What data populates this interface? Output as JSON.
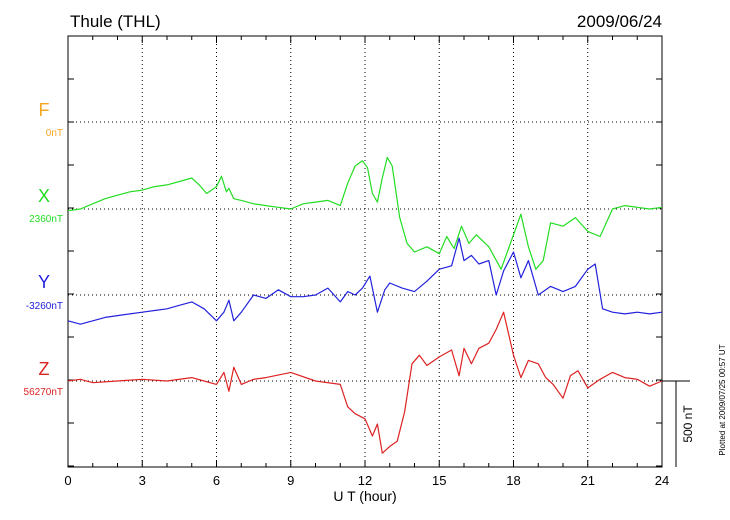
{
  "chart_data": {
    "type": "line",
    "title": "Thule (THL)",
    "date": "2009/06/24",
    "xlabel": "U T (hour)",
    "xlim": [
      0,
      24
    ],
    "x_ticks": [
      "0",
      "3",
      "6",
      "9",
      "12",
      "15",
      "18",
      "21",
      "24"
    ],
    "scale_bar_label": "500 nT",
    "plotted_note": "Plotted at 2009/07/25 00:57 UT",
    "series": [
      {
        "name": "F",
        "baseline_label": "0nT",
        "color": "#f5a623",
        "x": [],
        "y": []
      },
      {
        "name": "X",
        "baseline_label": "2360nT",
        "color": "#22dd22",
        "x": [
          0,
          0.5,
          1,
          1.5,
          2,
          2.5,
          3,
          3.5,
          4,
          4.5,
          5,
          5.3,
          5.6,
          6,
          6.2,
          6.4,
          6.5,
          6.7,
          7,
          7.5,
          8,
          8.5,
          9,
          9.5,
          10,
          10.5,
          11,
          11.3,
          11.6,
          11.9,
          12.1,
          12.3,
          12.5,
          12.7,
          12.9,
          13.1,
          13.4,
          13.7,
          14,
          14.5,
          15,
          15.3,
          15.6,
          15.9,
          16.2,
          16.5,
          17,
          17.5,
          18,
          18.3,
          18.6,
          18.9,
          19.2,
          19.5,
          20,
          20.5,
          21,
          21.5,
          22,
          22.5,
          23,
          23.5,
          24
        ],
        "y": [
          -10,
          0,
          30,
          60,
          80,
          100,
          110,
          130,
          140,
          160,
          180,
          140,
          90,
          130,
          190,
          100,
          120,
          60,
          50,
          30,
          20,
          10,
          0,
          30,
          40,
          50,
          20,
          150,
          250,
          280,
          240,
          90,
          40,
          180,
          300,
          250,
          -50,
          -200,
          -250,
          -220,
          -260,
          -160,
          -230,
          -100,
          -200,
          -150,
          -220,
          -350,
          -150,
          -30,
          -220,
          -350,
          -300,
          -80,
          -100,
          -50,
          -130,
          -160,
          0,
          20,
          10,
          0,
          10
        ]
      },
      {
        "name": "Y",
        "baseline_label": "-3260nT",
        "color": "#2222dd",
        "x": [
          0,
          0.5,
          1,
          1.5,
          2,
          2.5,
          3,
          3.5,
          4,
          4.5,
          5,
          5.5,
          6,
          6.3,
          6.5,
          6.7,
          7,
          7.5,
          8,
          8.5,
          9,
          9.5,
          10,
          10.5,
          11,
          11.3,
          11.6,
          11.9,
          12.2,
          12.5,
          12.8,
          13,
          13.5,
          14,
          14.5,
          15,
          15.5,
          15.8,
          16,
          16.3,
          16.6,
          17,
          17.3,
          17.6,
          18,
          18.3,
          18.6,
          19,
          19.5,
          20,
          20.5,
          21,
          21.3,
          21.6,
          22,
          22.5,
          23,
          23.5,
          24
        ],
        "y": [
          -150,
          -170,
          -150,
          -130,
          -120,
          -110,
          -100,
          -90,
          -80,
          -60,
          -40,
          -80,
          -150,
          -100,
          -30,
          -150,
          -100,
          0,
          -20,
          30,
          -10,
          -10,
          0,
          40,
          -40,
          20,
          0,
          40,
          110,
          -100,
          30,
          70,
          40,
          20,
          80,
          150,
          170,
          330,
          200,
          230,
          180,
          200,
          0,
          140,
          250,
          100,
          200,
          0,
          50,
          20,
          50,
          150,
          180,
          -80,
          -100,
          -110,
          -100,
          -110,
          -100
        ]
      },
      {
        "name": "Z",
        "baseline_label": "56270nT",
        "color": "#dd2222",
        "x": [
          0,
          0.5,
          1,
          2,
          3,
          4,
          5,
          5.5,
          6,
          6.3,
          6.5,
          6.7,
          7,
          7.5,
          8,
          9,
          10,
          11,
          11.3,
          11.6,
          12,
          12.3,
          12.5,
          12.7,
          13,
          13.3,
          13.6,
          13.9,
          14.2,
          14.5,
          15,
          15.5,
          15.8,
          16,
          16.3,
          16.6,
          17,
          17.3,
          17.6,
          18,
          18.3,
          18.6,
          19,
          19.3,
          19.6,
          20,
          20.3,
          20.6,
          21,
          21.5,
          22,
          22.5,
          23,
          23.5,
          24
        ],
        "y": [
          0,
          10,
          -10,
          0,
          10,
          0,
          20,
          0,
          -20,
          50,
          -60,
          80,
          -20,
          10,
          20,
          50,
          0,
          -20,
          -150,
          -190,
          -220,
          -320,
          -250,
          -420,
          -380,
          -350,
          -180,
          100,
          150,
          90,
          140,
          180,
          30,
          190,
          100,
          190,
          220,
          300,
          400,
          150,
          20,
          120,
          100,
          20,
          -20,
          -100,
          30,
          60,
          -40,
          10,
          50,
          20,
          10,
          -30,
          0
        ]
      }
    ]
  }
}
